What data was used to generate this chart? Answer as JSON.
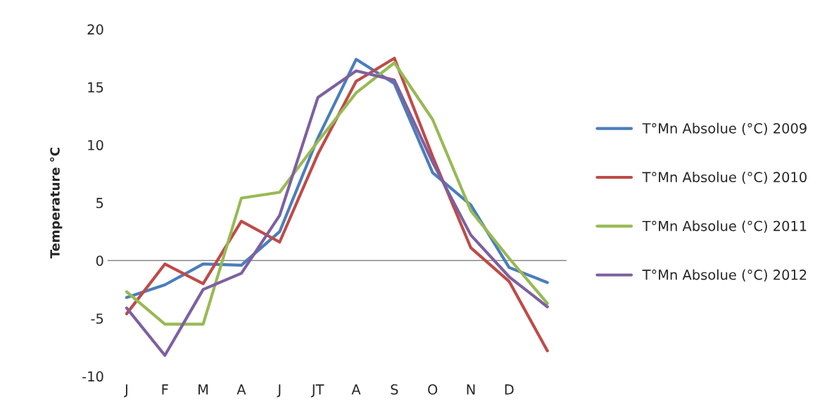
{
  "chart_data": {
    "type": "line",
    "ylabel": "Temperature °C",
    "categories": [
      "J",
      "F",
      "M",
      "A",
      "J",
      "JT",
      "A",
      "S",
      "O",
      "N",
      "D",
      null
    ],
    "series": [
      {
        "name": "T°Mn Absolue (°C) 2009",
        "color": "#4a7ebb",
        "values": [
          -3.2,
          -2.1,
          -0.3,
          -0.4,
          2.5,
          10.6,
          17.4,
          15.3,
          7.6,
          4.8,
          -0.6,
          -1.9
        ]
      },
      {
        "name": "T°Mn Absolue (°C) 2010",
        "color": "#be4b48",
        "values": [
          -4.6,
          -0.3,
          -2.0,
          3.4,
          1.6,
          9.2,
          15.5,
          17.5,
          9.0,
          1.1,
          -1.8,
          -7.8
        ]
      },
      {
        "name": "T°Mn Absolue (°C) 2011",
        "color": "#98b954",
        "values": [
          -2.7,
          -5.5,
          -5.5,
          5.4,
          5.9,
          10.3,
          14.5,
          17.1,
          12.2,
          4.3,
          0.2,
          -3.7
        ]
      },
      {
        "name": "T°Mn Absolue (°C) 2012",
        "color": "#7d60a0",
        "values": [
          -4.1,
          -8.2,
          -2.5,
          -1.1,
          3.9,
          14.1,
          16.4,
          15.6,
          8.5,
          2.2,
          -1.4,
          -4.0
        ]
      }
    ],
    "ylim": [
      -10,
      20
    ],
    "yticks": [
      -10,
      -5,
      0,
      5,
      10,
      15,
      20
    ],
    "grid": false,
    "ref_lines": [
      {
        "axis": "y",
        "value": 0,
        "color": "#888888"
      }
    ],
    "legend": "right",
    "marker": "none",
    "line_style": "solid"
  }
}
